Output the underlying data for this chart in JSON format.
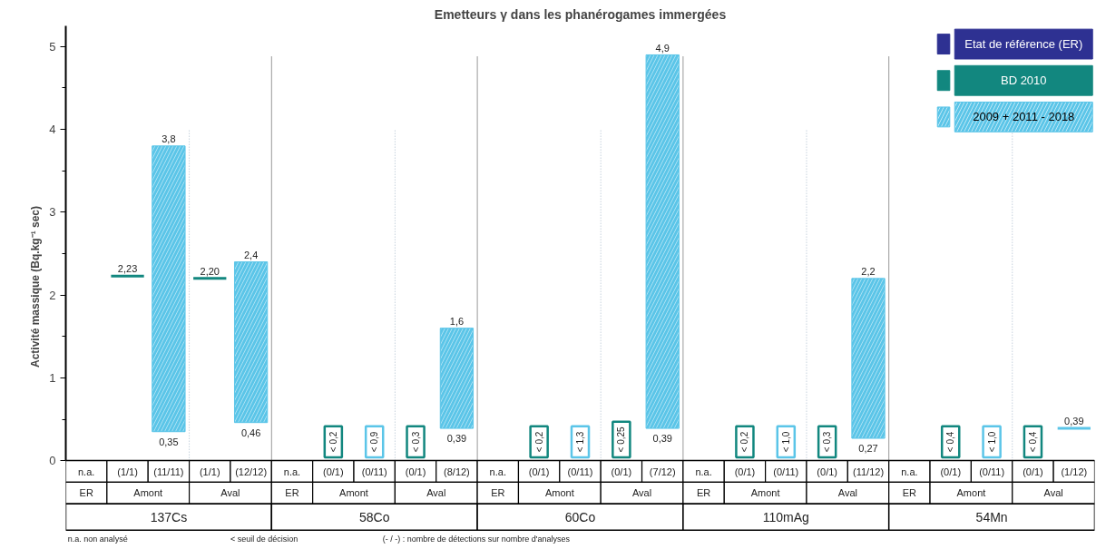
{
  "chart_data": {
    "type": "bar",
    "title": "Emetteurs γ dans les phanérogames immergées",
    "ylabel": "Activité massique (Bq.kg⁻¹ sec)",
    "categories": [
      "n.a.",
      "(1/1)",
      "(11/11)",
      "(1/1)",
      "(12/12)",
      "n.a.",
      "(0/1)",
      "(0/11)",
      "(0/1)",
      "(8/12)",
      "n.a.",
      "(0/1)",
      "(0/11)",
      "(0/1)",
      "(7/12)",
      "n.a.",
      "(0/1)",
      "(0/11)",
      "(0/1)",
      "(11/12)",
      "n.a.",
      "(0/1)",
      "(0/11)",
      "(0/1)",
      "(1/12)"
    ],
    "series": [
      {
        "name": "Etat de référence (ER)",
        "color": "#2e3192",
        "values": [
          null,
          null,
          null,
          null,
          null,
          null,
          null,
          null,
          null,
          null,
          null,
          null,
          null,
          null,
          null,
          null,
          null,
          null,
          null,
          null,
          null,
          null,
          null,
          null,
          null
        ]
      },
      {
        "name": "BD 2010",
        "color": "#12877f",
        "values": [
          null,
          0,
          null,
          0,
          null,
          null,
          null,
          null,
          null,
          null,
          null,
          null,
          null,
          null,
          null,
          null,
          null,
          null,
          null,
          null,
          null,
          null,
          null,
          null,
          null
        ],
        "base": [
          null,
          2.23,
          null,
          2.2,
          null,
          null,
          null,
          null,
          null,
          null,
          null,
          null,
          null,
          null,
          null,
          null,
          null,
          null,
          null,
          null,
          null,
          null,
          null,
          null,
          null
        ],
        "value_labels": [
          null,
          "2,23",
          null,
          "2,20",
          null,
          null,
          "< 0,2",
          null,
          "< 0,3",
          null,
          null,
          "< 0,2",
          null,
          "< 0,25",
          null,
          null,
          "< 0,2",
          null,
          "< 0,3",
          null,
          null,
          "< 0,4",
          null,
          "< 0,4",
          null
        ]
      },
      {
        "name": "2009 + 2011 - 2018",
        "color": "#5bc5e8",
        "values": [
          null,
          null,
          3.45,
          null,
          1.94,
          null,
          null,
          null,
          null,
          1.21,
          null,
          null,
          null,
          null,
          4.51,
          null,
          null,
          null,
          null,
          1.93,
          null,
          null,
          null,
          null,
          0
        ],
        "base": [
          null,
          null,
          0.35,
          null,
          0.46,
          null,
          null,
          null,
          null,
          0.39,
          null,
          null,
          null,
          null,
          0.39,
          null,
          null,
          null,
          null,
          0.27,
          null,
          null,
          null,
          null,
          0.39
        ],
        "value_labels": [
          null,
          null,
          [
            "3,8",
            "0,35"
          ],
          null,
          [
            "2,4",
            "0,46"
          ],
          null,
          null,
          "< 0,9",
          null,
          [
            "1,6",
            "0,39"
          ],
          null,
          null,
          "< 1,3",
          null,
          [
            "4,9",
            "0,39"
          ],
          null,
          null,
          "< 1,0",
          null,
          [
            "2,2",
            "0,27"
          ],
          null,
          null,
          "< 1,0",
          null,
          "0,39"
        ]
      }
    ],
    "ylim": [
      0,
      5.25
    ],
    "yticks": [
      0,
      1,
      2,
      3,
      4,
      5
    ],
    "grid": false,
    "legend": "top right",
    "annotations": [
      "ER",
      "Amont",
      "Aval",
      "ER",
      "Amont",
      "Aval",
      "ER",
      "Amont",
      "Aval",
      "ER",
      "Amont",
      "Aval",
      "ER",
      "Amont",
      "Aval",
      "137Cs",
      "58Co",
      "60Co",
      "110mAg",
      "54Mn",
      "n.a. non analysé",
      "< seuil de décision",
      "(- / -) : nombre de détections sur nombre d'analyses"
    ]
  }
}
